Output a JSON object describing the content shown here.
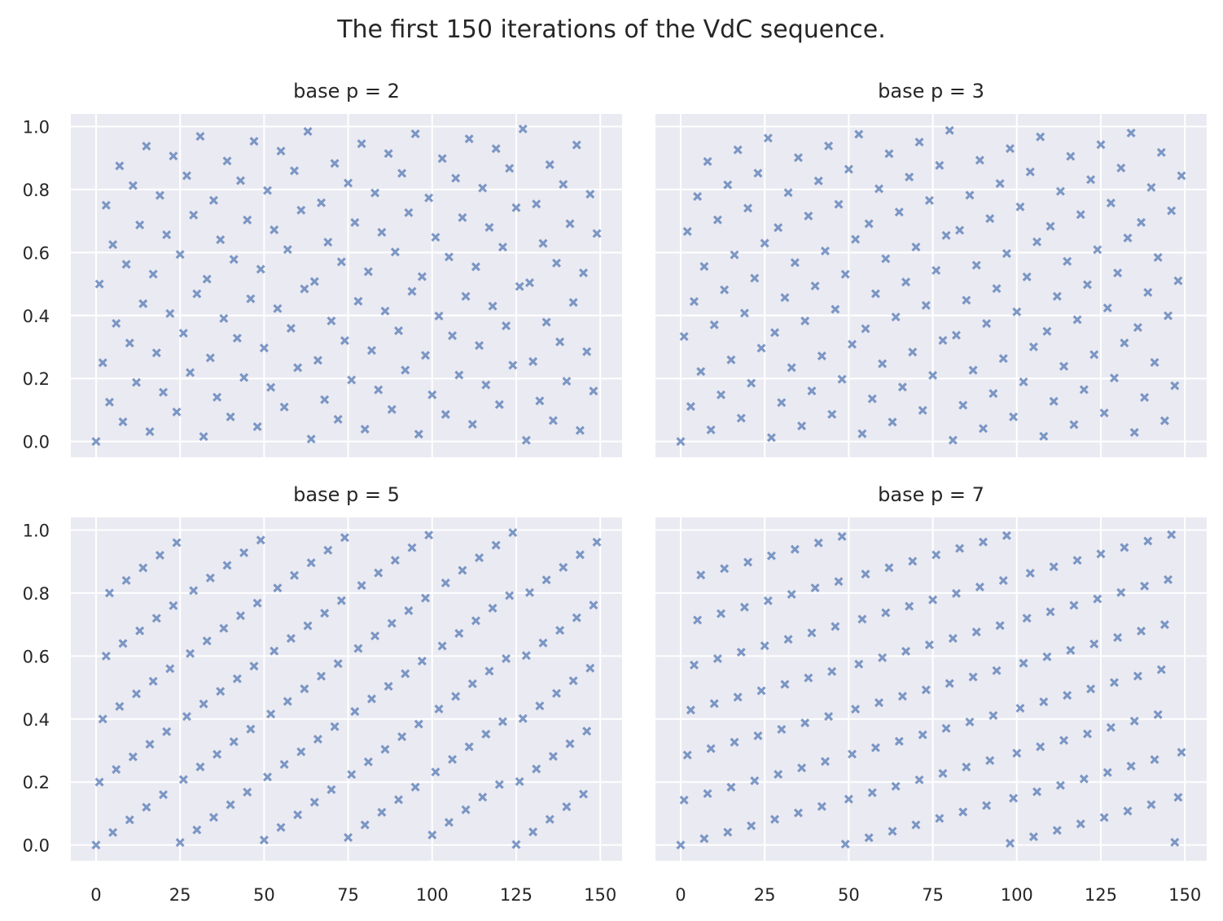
{
  "chart_data": {
    "type": "scatter",
    "title": "The first 150 iterations of the VdC sequence.",
    "layout": "2x2 grid, shared x and y axes",
    "marker": "X",
    "marker_color": "#4c72b0",
    "marker_alpha": 0.7,
    "background_color": "#eaeaf2",
    "grid": true,
    "xlim": [
      -7.5,
      156.5
    ],
    "ylim": [
      -0.05,
      1.04
    ],
    "x_ticks": [
      0,
      25,
      50,
      75,
      100,
      125,
      150
    ],
    "x_tick_labels": [
      "0",
      "25",
      "50",
      "75",
      "100",
      "125",
      "150"
    ],
    "y_ticks": [
      0,
      0.2,
      0.4,
      0.6,
      0.8,
      1.0
    ],
    "y_tick_labels": [
      "0.0",
      "0.2",
      "0.4",
      "0.6",
      "0.8",
      "1.0"
    ],
    "x_start": 0,
    "x_step": 1,
    "panels": [
      {
        "title": "base p = 2",
        "base": 2,
        "values": [
          0,
          0.5,
          0.25,
          0.75,
          0.125,
          0.625,
          0.375,
          0.875,
          0.0625,
          0.5625,
          0.3125,
          0.8125,
          0.1875,
          0.6875,
          0.4375,
          0.9375,
          0.0313,
          0.5313,
          0.2813,
          0.7813,
          0.1563,
          0.6563,
          0.4063,
          0.9063,
          0.0938,
          0.5938,
          0.3438,
          0.8438,
          0.2188,
          0.7188,
          0.4688,
          0.9688,
          0.0156,
          0.5156,
          0.2656,
          0.7656,
          0.1406,
          0.6406,
          0.3906,
          0.8906,
          0.0781,
          0.5781,
          0.3281,
          0.8281,
          0.2031,
          0.7031,
          0.4531,
          0.9531,
          0.0469,
          0.5469,
          0.2969,
          0.7969,
          0.1719,
          0.6719,
          0.4219,
          0.9219,
          0.1094,
          0.6094,
          0.3594,
          0.8594,
          0.2344,
          0.7344,
          0.4844,
          0.9844,
          0.0078,
          0.5078,
          0.2578,
          0.7578,
          0.1328,
          0.6328,
          0.3828,
          0.8828,
          0.0703,
          0.5703,
          0.3203,
          0.8203,
          0.1953,
          0.6953,
          0.4453,
          0.9453,
          0.0391,
          0.5391,
          0.2891,
          0.7891,
          0.1641,
          0.6641,
          0.4141,
          0.9141,
          0.1016,
          0.6016,
          0.3516,
          0.8516,
          0.2266,
          0.7266,
          0.4766,
          0.9766,
          0.0234,
          0.5234,
          0.2734,
          0.7734,
          0.1484,
          0.6484,
          0.3984,
          0.8984,
          0.0859,
          0.5859,
          0.3359,
          0.8359,
          0.2109,
          0.7109,
          0.4609,
          0.9609,
          0.0547,
          0.5547,
          0.3047,
          0.8047,
          0.1797,
          0.6797,
          0.4297,
          0.9297,
          0.1172,
          0.6172,
          0.3672,
          0.8672,
          0.2422,
          0.7422,
          0.4922,
          0.9922,
          0.0039,
          0.5039,
          0.2539,
          0.7539,
          0.1289,
          0.6289,
          0.3789,
          0.8789,
          0.0664,
          0.5664,
          0.3164,
          0.8164,
          0.1914,
          0.6914,
          0.4414,
          0.9414,
          0.0352,
          0.5352,
          0.2852,
          0.7852,
          0.1602,
          0.6602
        ]
      },
      {
        "title": "base p = 3",
        "base": 3,
        "values": [
          0,
          0.3333,
          0.6667,
          0.1111,
          0.4444,
          0.7778,
          0.2222,
          0.5556,
          0.8889,
          0.037,
          0.3704,
          0.7037,
          0.1481,
          0.4815,
          0.8148,
          0.2593,
          0.5926,
          0.9259,
          0.0741,
          0.4074,
          0.7407,
          0.1852,
          0.5185,
          0.8519,
          0.2963,
          0.6296,
          0.963,
          0.0123,
          0.3457,
          0.679,
          0.1235,
          0.4568,
          0.7901,
          0.2346,
          0.5679,
          0.9012,
          0.0494,
          0.3827,
          0.716,
          0.1605,
          0.4938,
          0.8272,
          0.2716,
          0.6049,
          0.9383,
          0.0864,
          0.4198,
          0.7531,
          0.1975,
          0.5309,
          0.8642,
          0.3086,
          0.642,
          0.9753,
          0.0247,
          0.358,
          0.6914,
          0.1358,
          0.4691,
          0.8025,
          0.2469,
          0.5802,
          0.9136,
          0.0617,
          0.3951,
          0.7284,
          0.1728,
          0.5062,
          0.8395,
          0.284,
          0.6173,
          0.9506,
          0.0988,
          0.4321,
          0.7654,
          0.2099,
          0.5432,
          0.8765,
          0.321,
          0.6543,
          0.9877,
          0.0041,
          0.3374,
          0.6708,
          0.1152,
          0.4486,
          0.7819,
          0.2263,
          0.5597,
          0.893,
          0.0412,
          0.3745,
          0.7078,
          0.1523,
          0.4856,
          0.8189,
          0.2634,
          0.5967,
          0.93,
          0.0782,
          0.4115,
          0.7449,
          0.1893,
          0.5226,
          0.856,
          0.3004,
          0.6337,
          0.9671,
          0.0165,
          0.3498,
          0.6831,
          0.1276,
          0.4609,
          0.7942,
          0.2387,
          0.572,
          0.9053,
          0.0535,
          0.3868,
          0.7202,
          0.1646,
          0.4979,
          0.8313,
          0.2757,
          0.6091,
          0.9424,
          0.0905,
          0.4239,
          0.7572,
          0.2016,
          0.535,
          0.8683,
          0.3128,
          0.6461,
          0.9794,
          0.0288,
          0.3621,
          0.6955,
          0.1399,
          0.4733,
          0.8066,
          0.251,
          0.5844,
          0.9177,
          0.0658,
          0.3992,
          0.7325,
          0.177,
          0.5103,
          0.8436
        ]
      },
      {
        "title": "base p = 5",
        "base": 5,
        "values": [
          0,
          0.2,
          0.4,
          0.6,
          0.8,
          0.04,
          0.24,
          0.44,
          0.64,
          0.84,
          0.08,
          0.28,
          0.48,
          0.68,
          0.88,
          0.12,
          0.32,
          0.52,
          0.72,
          0.92,
          0.16,
          0.36,
          0.56,
          0.76,
          0.96,
          0.008,
          0.208,
          0.408,
          0.608,
          0.808,
          0.048,
          0.248,
          0.448,
          0.648,
          0.848,
          0.088,
          0.288,
          0.488,
          0.688,
          0.888,
          0.128,
          0.328,
          0.528,
          0.728,
          0.928,
          0.168,
          0.368,
          0.568,
          0.768,
          0.968,
          0.016,
          0.216,
          0.416,
          0.616,
          0.816,
          0.056,
          0.256,
          0.456,
          0.656,
          0.856,
          0.096,
          0.296,
          0.496,
          0.696,
          0.896,
          0.136,
          0.336,
          0.536,
          0.736,
          0.936,
          0.176,
          0.376,
          0.576,
          0.776,
          0.976,
          0.024,
          0.224,
          0.424,
          0.624,
          0.824,
          0.064,
          0.264,
          0.464,
          0.664,
          0.864,
          0.104,
          0.304,
          0.504,
          0.704,
          0.904,
          0.144,
          0.344,
          0.544,
          0.744,
          0.944,
          0.184,
          0.384,
          0.584,
          0.784,
          0.984,
          0.032,
          0.232,
          0.432,
          0.632,
          0.832,
          0.072,
          0.272,
          0.472,
          0.672,
          0.872,
          0.112,
          0.312,
          0.512,
          0.712,
          0.912,
          0.152,
          0.352,
          0.552,
          0.752,
          0.952,
          0.192,
          0.392,
          0.592,
          0.792,
          0.992,
          0.0016,
          0.2016,
          0.4016,
          0.6016,
          0.8016,
          0.0416,
          0.2416,
          0.4416,
          0.6416,
          0.8416,
          0.0816,
          0.2816,
          0.4816,
          0.6816,
          0.8816,
          0.1216,
          0.3216,
          0.5216,
          0.7216,
          0.9216,
          0.1616,
          0.3616,
          0.5616,
          0.7616,
          0.9616
        ]
      },
      {
        "title": "base p = 7",
        "base": 7,
        "values": [
          0,
          0.1429,
          0.2857,
          0.4286,
          0.5714,
          0.7143,
          0.8571,
          0.0204,
          0.1633,
          0.3061,
          0.449,
          0.5918,
          0.7347,
          0.8776,
          0.0408,
          0.1837,
          0.3265,
          0.4694,
          0.6122,
          0.7551,
          0.898,
          0.0612,
          0.2041,
          0.3469,
          0.4898,
          0.6327,
          0.7755,
          0.9184,
          0.0816,
          0.2245,
          0.3673,
          0.5102,
          0.6531,
          0.7959,
          0.9388,
          0.102,
          0.2449,
          0.3878,
          0.5306,
          0.6735,
          0.8163,
          0.9592,
          0.1224,
          0.2653,
          0.4082,
          0.551,
          0.6939,
          0.8367,
          0.9796,
          0.0029,
          0.1458,
          0.2886,
          0.4315,
          0.5743,
          0.7172,
          0.8601,
          0.0233,
          0.1662,
          0.309,
          0.4519,
          0.5948,
          0.7376,
          0.8805,
          0.0437,
          0.1866,
          0.3294,
          0.4723,
          0.6152,
          0.758,
          0.9009,
          0.0641,
          0.207,
          0.3499,
          0.4927,
          0.6356,
          0.7784,
          0.9213,
          0.0845,
          0.2274,
          0.3703,
          0.5131,
          0.656,
          0.7988,
          0.9417,
          0.105,
          0.2478,
          0.3907,
          0.5335,
          0.6764,
          0.8192,
          0.9621,
          0.1254,
          0.2682,
          0.4111,
          0.5539,
          0.6968,
          0.8397,
          0.9825,
          0.0058,
          0.1487,
          0.2915,
          0.4344,
          0.5773,
          0.7201,
          0.863,
          0.0262,
          0.1691,
          0.312,
          0.4548,
          0.5977,
          0.7405,
          0.8834,
          0.0466,
          0.1895,
          0.3324,
          0.4752,
          0.6181,
          0.7609,
          0.9038,
          0.0671,
          0.2099,
          0.3528,
          0.4956,
          0.6385,
          0.7813,
          0.9242,
          0.0875,
          0.2303,
          0.3732,
          0.516,
          0.6589,
          0.8017,
          0.9446,
          0.1079,
          0.2507,
          0.3936,
          0.5364,
          0.6793,
          0.8222,
          0.965,
          0.1283,
          0.2711,
          0.414,
          0.5569,
          0.6997,
          0.8426,
          0.9854,
          0.0087,
          0.1516,
          0.2945
        ]
      }
    ]
  }
}
